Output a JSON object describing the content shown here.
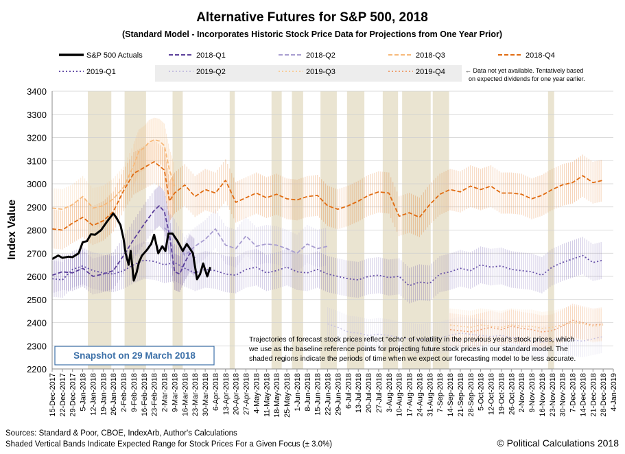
{
  "chart_data": {
    "type": "line",
    "title": "Alternative Futures for S&P 500, 2018",
    "subtitle": "(Standard Model - Incorporates Historic Stock Price Data for Projections from One Year Prior)",
    "ylabel": "Index Value",
    "xlabel": "",
    "ylim": [
      2200,
      3400
    ],
    "yticks": [
      2200,
      2300,
      2400,
      2500,
      2600,
      2700,
      2800,
      2900,
      3000,
      3100,
      3200,
      3300,
      3400
    ],
    "x_tick_labels": [
      "15-Dec-2017",
      "22-Dec-2017",
      "29-Dec-2017",
      "5-Jan-2018",
      "12-Jan-2018",
      "19-Jan-2018",
      "26-Jan-2018",
      "2-Feb-2018",
      "9-Feb-2018",
      "16-Feb-2018",
      "23-Feb-2018",
      "2-Mar-2018",
      "9-Mar-2018",
      "16-Mar-2018",
      "23-Mar-2018",
      "30-Mar-2018",
      "6-Apr-2018",
      "13-Apr-2018",
      "20-Apr-2018",
      "27-Apr-2018",
      "4-May-2018",
      "11-May-2018",
      "18-May-2018",
      "25-May-2018",
      "1-Jun-2018",
      "8-Jun-2018",
      "15-Jun-2018",
      "22-Jun-2018",
      "29-Jun-2018",
      "6-Jul-2018",
      "13-Jul-2018",
      "20-Jul-2018",
      "27-Jul-2018",
      "3-Aug-2018",
      "10-Aug-2018",
      "17-Aug-2018",
      "24-Aug-2018",
      "31-Aug-2018",
      "7-Sep-2018",
      "14-Sep-2018",
      "21-Sep-2018",
      "28-Sep-2018",
      "5-Oct-2018",
      "12-Oct-2018",
      "19-Oct-2018",
      "26-Oct-2018",
      "2-Nov-2018",
      "9-Nov-2018",
      "16-Nov-2018",
      "23-Nov-2018",
      "30-Nov-2018",
      "7-Dec-2018",
      "14-Dec-2018",
      "21-Dec-2018",
      "28-Dec-2018",
      "4-Jan-2019"
    ],
    "shaded_bands_week_ranges": [
      [
        3.5,
        5.8
      ],
      [
        7.1,
        9.2
      ],
      [
        11.8,
        12.8
      ],
      [
        17.4,
        17.9
      ],
      [
        21.5,
        22.5
      ],
      [
        23.5,
        24.6
      ],
      [
        26.3,
        27.9
      ],
      [
        28.9,
        30.6
      ],
      [
        32.4,
        33.9
      ],
      [
        34.3,
        37.1
      ],
      [
        37.3,
        38.9
      ],
      [
        48.6,
        49.2
      ]
    ],
    "legend": [
      {
        "name": "S&P 500 Actuals",
        "color": "#000000",
        "style": "solid"
      },
      {
        "name": "2018-Q1",
        "color": "#5b3f9a",
        "style": "dash"
      },
      {
        "name": "2018-Q2",
        "color": "#a89dd0",
        "style": "dash"
      },
      {
        "name": "2018-Q3",
        "color": "#f7b97a",
        "style": "dash"
      },
      {
        "name": "2018-Q4",
        "color": "#e06b10",
        "style": "dash"
      },
      {
        "name": "2019-Q1",
        "color": "#6650a8",
        "style": "dot"
      },
      {
        "name": "2019-Q2",
        "color": "#c5bfe0",
        "style": "dot"
      },
      {
        "name": "2019-Q3",
        "color": "#f8cc99",
        "style": "dot"
      },
      {
        "name": "2019-Q4",
        "color": "#eea070",
        "style": "dot"
      }
    ],
    "series": [
      {
        "name": "S&P 500 Actuals",
        "color": "#000000",
        "dash": "none",
        "width": 3,
        "weeks": [
          0,
          0.6,
          1,
          1.6,
          2,
          2.6,
          3,
          3.4,
          3.8,
          4.2,
          4.8,
          5.4,
          6,
          6.3,
          6.7,
          7,
          7.2,
          7.5,
          7.7,
          8,
          8.3,
          8.5,
          8.8,
          9,
          9.3,
          9.7,
          10,
          10.4,
          10.8,
          11.1,
          11.4,
          11.8,
          12.3,
          12.8,
          13.2,
          13.5,
          13.8,
          14.2,
          14.5,
          14.8,
          15.2,
          15.5
        ],
        "values": [
          2675,
          2690,
          2680,
          2685,
          2683,
          2700,
          2748,
          2752,
          2782,
          2780,
          2800,
          2838,
          2872,
          2853,
          2822,
          2762,
          2700,
          2650,
          2710,
          2582,
          2620,
          2660,
          2690,
          2700,
          2715,
          2740,
          2780,
          2700,
          2730,
          2710,
          2785,
          2785,
          2752,
          2710,
          2740,
          2720,
          2700,
          2588,
          2610,
          2656,
          2600,
          2640
        ]
      },
      {
        "name": "2018-Q1",
        "color": "#5b3f9a",
        "dash": "6,3",
        "width": 1.8,
        "weeks": [
          0,
          1,
          2,
          3,
          4,
          5,
          6,
          7,
          8,
          9,
          10,
          10.5,
          11,
          11.5,
          12,
          12.5,
          13,
          13.5,
          14
        ],
        "values": [
          2605,
          2620,
          2615,
          2635,
          2600,
          2610,
          2625,
          2690,
          2760,
          2825,
          2885,
          2905,
          2880,
          2780,
          2620,
          2610,
          2660,
          2700,
          2680
        ]
      },
      {
        "name": "2018-Q2",
        "color": "#a89dd0",
        "dash": "6,3",
        "width": 1.8,
        "weeks": [
          11,
          11.5,
          12,
          13,
          14,
          15,
          16,
          17,
          18,
          19,
          20,
          21,
          22,
          23,
          24,
          25,
          26,
          27
        ],
        "values": [
          2810,
          2790,
          2765,
          2690,
          2730,
          2760,
          2805,
          2735,
          2720,
          2775,
          2730,
          2740,
          2735,
          2720,
          2700,
          2740,
          2720,
          2730
        ]
      },
      {
        "name": "2018-Q3",
        "color": "#f7b97a",
        "dash": "6,3",
        "width": 1.8,
        "weeks": [
          0,
          1,
          2,
          3,
          4,
          5,
          6,
          7,
          8,
          8.5,
          9,
          9.5,
          10,
          10.5,
          11,
          11.5,
          12
        ],
        "values": [
          2895,
          2890,
          2910,
          2945,
          2895,
          2905,
          2935,
          2985,
          3080,
          3140,
          3155,
          3180,
          3190,
          3185,
          3165,
          3060,
          2990
        ]
      },
      {
        "name": "2018-Q4",
        "color": "#e06b10",
        "dash": "6,3",
        "width": 1.8,
        "weeks": [
          0,
          1,
          2,
          3,
          4,
          5,
          6,
          7,
          8,
          9,
          10,
          11,
          11.5,
          12,
          13,
          14,
          15,
          16,
          17,
          18,
          19,
          20,
          21,
          22,
          23,
          24,
          25,
          26,
          27,
          28,
          29,
          30,
          31,
          32,
          33,
          34,
          35,
          36,
          37,
          38,
          39,
          40,
          41,
          42,
          43,
          44,
          45,
          46,
          47,
          48,
          49,
          50,
          51,
          52,
          53,
          54
        ],
        "values": [
          2805,
          2800,
          2830,
          2855,
          2820,
          2840,
          2880,
          2970,
          3045,
          3070,
          3095,
          3060,
          2925,
          2960,
          2995,
          2945,
          2975,
          2960,
          3015,
          2920,
          2940,
          2960,
          2940,
          2955,
          2935,
          2930,
          2945,
          2950,
          2905,
          2890,
          2905,
          2925,
          2950,
          2965,
          2960,
          2860,
          2875,
          2855,
          2910,
          2955,
          2975,
          2965,
          2990,
          2975,
          2990,
          2960,
          2960,
          2955,
          2935,
          2950,
          2975,
          2995,
          3005,
          3035,
          3005,
          3015
        ]
      },
      {
        "name": "2019-Q1",
        "color": "#6650a8",
        "dash": "2,3",
        "width": 1.8,
        "weeks": [
          0,
          1,
          2,
          3,
          4,
          5,
          6,
          7,
          8,
          9,
          10,
          11,
          12,
          13,
          14,
          15,
          16,
          17,
          18,
          19,
          20,
          21,
          22,
          23,
          24,
          25,
          26,
          27,
          28,
          29,
          30,
          31,
          32,
          33,
          34,
          35,
          36,
          37,
          38,
          39,
          40,
          41,
          42,
          43,
          44,
          45,
          46,
          47,
          48,
          49,
          50,
          51,
          52,
          53,
          54
        ],
        "values": [
          2590,
          2585,
          2630,
          2645,
          2625,
          2615,
          2610,
          2625,
          2650,
          2670,
          2665,
          2650,
          2660,
          2635,
          2615,
          2630,
          2625,
          2610,
          2605,
          2630,
          2640,
          2615,
          2625,
          2640,
          2620,
          2615,
          2630,
          2610,
          2600,
          2590,
          2585,
          2600,
          2605,
          2595,
          2600,
          2560,
          2575,
          2570,
          2610,
          2620,
          2635,
          2625,
          2650,
          2640,
          2645,
          2630,
          2625,
          2620,
          2605,
          2640,
          2660,
          2675,
          2690,
          2660,
          2670
        ]
      },
      {
        "name": "2019-Q2",
        "color": "#c5bfe0",
        "dash": "2,3",
        "width": 1.5,
        "weeks": [
          27,
          28,
          29,
          30,
          31,
          32,
          33,
          34,
          35,
          36,
          37,
          38,
          39,
          40,
          41,
          42,
          43,
          44,
          45,
          46,
          47,
          48,
          49,
          50,
          51,
          52,
          53,
          54
        ],
        "values": [
          2395,
          2380,
          2360,
          2355,
          2345,
          2350,
          2345,
          2335,
          2330,
          2325,
          2330,
          2335,
          2345,
          2355,
          2350,
          2345,
          2340,
          2345,
          2335,
          2330,
          2320,
          2315,
          2325,
          2330,
          2325,
          2320,
          2330,
          2340
        ]
      },
      {
        "name": "2019-Q3",
        "color": "#f8cc99",
        "dash": "2,3",
        "width": 1.5,
        "weeks": [
          39,
          40,
          41,
          42,
          43,
          44,
          45,
          46,
          47,
          48,
          49,
          50,
          51,
          52,
          53,
          54
        ],
        "values": [
          2390,
          2385,
          2380,
          2390,
          2385,
          2380,
          2390,
          2385,
          2385,
          2375,
          2380,
          2390,
          2400,
          2395,
          2385,
          2390
        ]
      },
      {
        "name": "2019-Q4",
        "color": "#eea070",
        "dash": "2,3",
        "width": 1.5,
        "weeks": [
          39,
          40,
          41,
          42,
          43,
          44,
          45,
          46,
          47,
          48,
          49,
          50,
          51,
          52,
          53,
          54
        ],
        "values": [
          2370,
          2365,
          2360,
          2370,
          2380,
          2370,
          2385,
          2375,
          2370,
          2360,
          2365,
          2385,
          2410,
          2400,
          2390,
          2395
        ]
      }
    ],
    "legend_note": [
      "← Data not yet available. Tentatively based",
      "on expected dividends for one year earlier."
    ],
    "annotation": [
      "Trajectories of forecast stock prices reflect \"echo\" of volatility in  the previous year's stock prices, which",
      "we use as the baseline reference points for projecting future stock prices in our standard model.   The",
      "shaded regions indicate the periods of time when we expect our forecasting model to be less accurate."
    ],
    "snapshot_label": "Snapshot on 29 March 2018",
    "footer_sources": "Sources: Standard & Poor, CBOE, IndexArb, Author's Calculations",
    "footer_bands": "Shaded Vertical Bands Indicate Expected Range for Stock Prices For a Given Focus  (± 3.0%)",
    "copyright": "© Political Calculations 2018"
  }
}
